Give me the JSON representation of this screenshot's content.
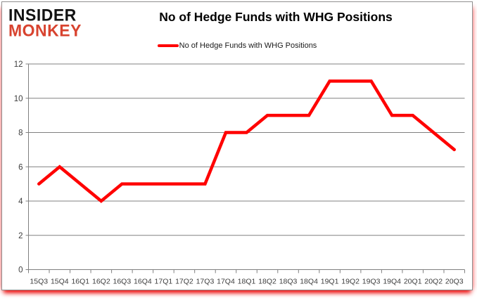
{
  "logo": {
    "line1": "INSIDER",
    "line2": "MONKEY",
    "color": "#d8432f"
  },
  "header": {
    "title": "No of Hedge Funds with WHG Positions"
  },
  "legend": {
    "label": "No of Hedge Funds with WHG Positions",
    "swatch_color": "#ff0000"
  },
  "chart_data": {
    "type": "line",
    "title": "No of Hedge Funds with WHG Positions",
    "categories": [
      "15Q3",
      "15Q4",
      "16Q1",
      "16Q2",
      "16Q3",
      "16Q4",
      "17Q1",
      "17Q2",
      "17Q3",
      "17Q4",
      "18Q1",
      "18Q2",
      "18Q3",
      "18Q4",
      "19Q1",
      "19Q2",
      "19Q3",
      "19Q4",
      "20Q1",
      "20Q2",
      "20Q3"
    ],
    "series": [
      {
        "name": "No of Hedge Funds with WHG Positions",
        "color": "#ff0000",
        "values": [
          5,
          6,
          5,
          4,
          5,
          5,
          5,
          5,
          5,
          8,
          8,
          9,
          9,
          9,
          11,
          11,
          11,
          9,
          9,
          8,
          7
        ]
      }
    ],
    "xlabel": "",
    "ylabel": "",
    "ylim": [
      0,
      12
    ],
    "ytick_step": 2,
    "ytick_labels": [
      "0",
      "2",
      "4",
      "6",
      "8",
      "10",
      "12"
    ],
    "grid": true,
    "legend_position": "top",
    "gridline_color": "#808080",
    "axis_color": "#808080",
    "axis_text_color": "#3d3d3d"
  }
}
